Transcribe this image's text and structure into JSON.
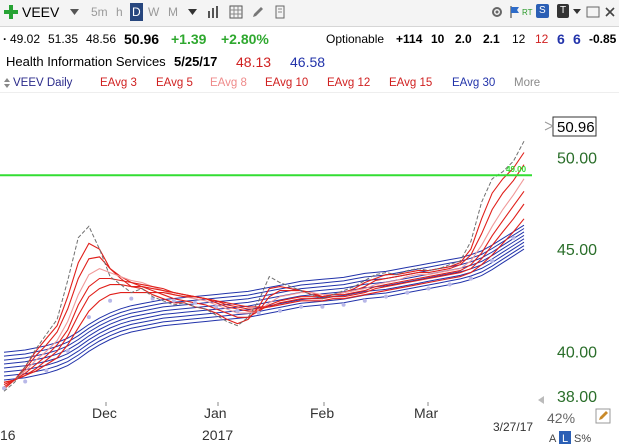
{
  "toolbar": {
    "symbol": "VEEV",
    "intervals": [
      "5m",
      "h",
      "D",
      "W",
      "M"
    ],
    "selected_interval": "D",
    "right_buttons": [
      "RT",
      "S",
      "T"
    ]
  },
  "quote": {
    "last": "49.02",
    "high": "51.35",
    "low": "48.56",
    "close": "50.96",
    "change": "+1.39",
    "change_pct": "+2.80%",
    "optionable": "Optionable",
    "v1": "+114",
    "v2": "10",
    "v3": "2.0",
    "v4": "2.1",
    "v5": "12",
    "v6": "12",
    "v7": "6",
    "v8": "6",
    "v9": "-0.85"
  },
  "info": {
    "industry": "Health Information Services",
    "date": "5/25/17",
    "red_value": "48.13",
    "blue_value": "46.58"
  },
  "legend": {
    "series_label": "VEEV Daily",
    "eavg3": "EAvg 3",
    "eavg5": "EAvg 5",
    "eavg8": "EAvg 8",
    "eavg10": "EAvg 10",
    "eavg12": "EAvg 12",
    "eavg15": "EAvg 15",
    "eavg30": "EAvg 30",
    "more": "More"
  },
  "colors": {
    "price_line": "#707070",
    "short_ema": "#e0201b",
    "short_ema_light": "#f09a9a",
    "long_ema": "#2233aa",
    "glb_line": "#33dd33",
    "dots": "#b8b8e8",
    "axis_text": "#2a6e2a",
    "selected_interval_bg": "#27467e"
  },
  "footer": {
    "zoom": "42%",
    "scale_buttons": [
      "A",
      "L",
      "S%"
    ],
    "end_date": "3/27/17"
  },
  "chart_data": {
    "type": "line",
    "x_labels": [
      "Dec",
      "Jan",
      "Feb",
      "Mar"
    ],
    "year_label": "2017",
    "left_cut_label": "16",
    "y_ticks": [
      "50.00",
      "45.00",
      "40.00",
      "38.00"
    ],
    "y_scale": "log",
    "ylim": [
      37.3,
      52.4
    ],
    "last_price_label": "50.96",
    "glb_label": "49.00",
    "glb_value": 49.0,
    "price": [
      38.2,
      38.6,
      39.3,
      40.1,
      40.8,
      41.5,
      43.4,
      45.6,
      46.2,
      45.0,
      43.6,
      43.2,
      42.8,
      43.0,
      42.6,
      42.4,
      42.2,
      42.3,
      42.1,
      42.0,
      41.7,
      41.4,
      41.2,
      41.6,
      42.4,
      43.6,
      43.3,
      43.1,
      42.9,
      42.7,
      42.5,
      42.7,
      42.9,
      43.1,
      43.4,
      43.7,
      43.8,
      43.7,
      43.9,
      44.0,
      43.9,
      44.0,
      44.2,
      44.4,
      45.4,
      47.5,
      48.8,
      49.2,
      49.8,
      50.96
    ],
    "eavg_short": [
      {
        "name": "EAvg 3",
        "values": [
          38.3,
          38.7,
          39.3,
          40.0,
          40.6,
          41.2,
          42.6,
          44.3,
          45.3,
          45.0,
          44.0,
          43.5,
          43.1,
          43.0,
          42.7,
          42.5,
          42.3,
          42.3,
          42.1,
          42.0,
          41.8,
          41.5,
          41.3,
          41.5,
          42.1,
          43.0,
          43.1,
          43.0,
          42.9,
          42.7,
          42.6,
          42.7,
          42.8,
          43.0,
          43.3,
          43.5,
          43.7,
          43.7,
          43.8,
          43.9,
          43.9,
          44.0,
          44.1,
          44.3,
          45.0,
          46.6,
          48.0,
          48.8,
          49.4,
          50.3
        ]
      },
      {
        "name": "EAvg 5",
        "values": [
          38.4,
          38.7,
          39.2,
          39.8,
          40.3,
          40.9,
          42.0,
          43.5,
          44.5,
          44.6,
          44.0,
          43.6,
          43.3,
          43.1,
          42.9,
          42.7,
          42.5,
          42.4,
          42.3,
          42.2,
          42.0,
          41.8,
          41.6,
          41.6,
          41.9,
          42.6,
          42.9,
          42.9,
          42.9,
          42.8,
          42.6,
          42.7,
          42.8,
          42.9,
          43.1,
          43.4,
          43.5,
          43.6,
          43.7,
          43.8,
          43.8,
          43.9,
          44.0,
          44.2,
          44.7,
          45.8,
          47.1,
          48.0,
          48.7,
          49.6
        ]
      },
      {
        "name": "EAvg 8",
        "values": [
          38.5,
          38.7,
          39.1,
          39.6,
          40.0,
          40.5,
          41.4,
          42.7,
          43.7,
          44.0,
          43.8,
          43.6,
          43.4,
          43.3,
          43.1,
          42.9,
          42.7,
          42.6,
          42.5,
          42.4,
          42.2,
          42.0,
          41.8,
          41.8,
          41.9,
          42.3,
          42.6,
          42.7,
          42.8,
          42.8,
          42.7,
          42.7,
          42.8,
          42.9,
          43.0,
          43.2,
          43.3,
          43.4,
          43.6,
          43.7,
          43.7,
          43.8,
          43.9,
          44.0,
          44.4,
          45.2,
          46.2,
          47.1,
          47.9,
          48.8
        ]
      },
      {
        "name": "EAvg 10",
        "values": [
          38.5,
          38.7,
          39.0,
          39.4,
          39.8,
          40.3,
          41.0,
          42.2,
          43.1,
          43.5,
          43.5,
          43.4,
          43.3,
          43.2,
          43.1,
          43.0,
          42.8,
          42.7,
          42.6,
          42.5,
          42.3,
          42.1,
          42.0,
          41.9,
          41.9,
          42.2,
          42.4,
          42.5,
          42.6,
          42.6,
          42.6,
          42.7,
          42.7,
          42.8,
          42.9,
          43.1,
          43.2,
          43.3,
          43.4,
          43.5,
          43.6,
          43.7,
          43.8,
          43.9,
          44.2,
          44.8,
          45.7,
          46.5,
          47.3,
          48.1
        ]
      },
      {
        "name": "EAvg 12",
        "values": [
          38.6,
          38.7,
          38.9,
          39.2,
          39.6,
          40.0,
          40.7,
          41.7,
          42.6,
          43.0,
          43.2,
          43.2,
          43.1,
          43.1,
          43.0,
          42.9,
          42.8,
          42.7,
          42.6,
          42.5,
          42.4,
          42.2,
          42.1,
          42.0,
          42.0,
          42.1,
          42.3,
          42.4,
          42.5,
          42.5,
          42.5,
          42.6,
          42.6,
          42.7,
          42.8,
          43.0,
          43.1,
          43.2,
          43.3,
          43.4,
          43.5,
          43.6,
          43.7,
          43.8,
          44.0,
          44.5,
          45.2,
          45.9,
          46.6,
          47.4
        ]
      },
      {
        "name": "EAvg 15",
        "values": [
          38.6,
          38.7,
          38.9,
          39.1,
          39.4,
          39.7,
          40.3,
          41.1,
          41.9,
          42.4,
          42.7,
          42.8,
          42.8,
          42.8,
          42.8,
          42.8,
          42.7,
          42.6,
          42.6,
          42.5,
          42.4,
          42.3,
          42.2,
          42.1,
          42.1,
          42.1,
          42.2,
          42.3,
          42.4,
          42.4,
          42.4,
          42.5,
          42.5,
          42.6,
          42.7,
          42.8,
          42.9,
          43.0,
          43.1,
          43.2,
          43.3,
          43.4,
          43.5,
          43.6,
          43.8,
          44.2,
          44.7,
          45.3,
          45.9,
          46.6
        ]
      }
    ],
    "eavg_long": [
      38.7,
      38.75,
      38.8,
      38.9,
      39.0,
      39.15,
      39.35,
      39.65,
      40.0,
      40.3,
      40.55,
      40.75,
      40.9,
      41.0,
      41.1,
      41.2,
      41.25,
      41.3,
      41.35,
      41.4,
      41.45,
      41.5,
      41.55,
      41.6,
      41.7,
      41.8,
      41.9,
      42.0,
      42.1,
      42.15,
      42.2,
      42.25,
      42.3,
      42.4,
      42.5,
      42.55,
      42.6,
      42.7,
      42.8,
      42.9,
      43.0,
      43.1,
      43.2,
      43.3,
      43.45,
      43.65,
      43.95,
      44.3,
      44.65,
      45.0
    ],
    "eavg_long_offsets": [
      0.0,
      0.18,
      0.36,
      0.54,
      0.72,
      0.9,
      1.08,
      1.26
    ]
  }
}
